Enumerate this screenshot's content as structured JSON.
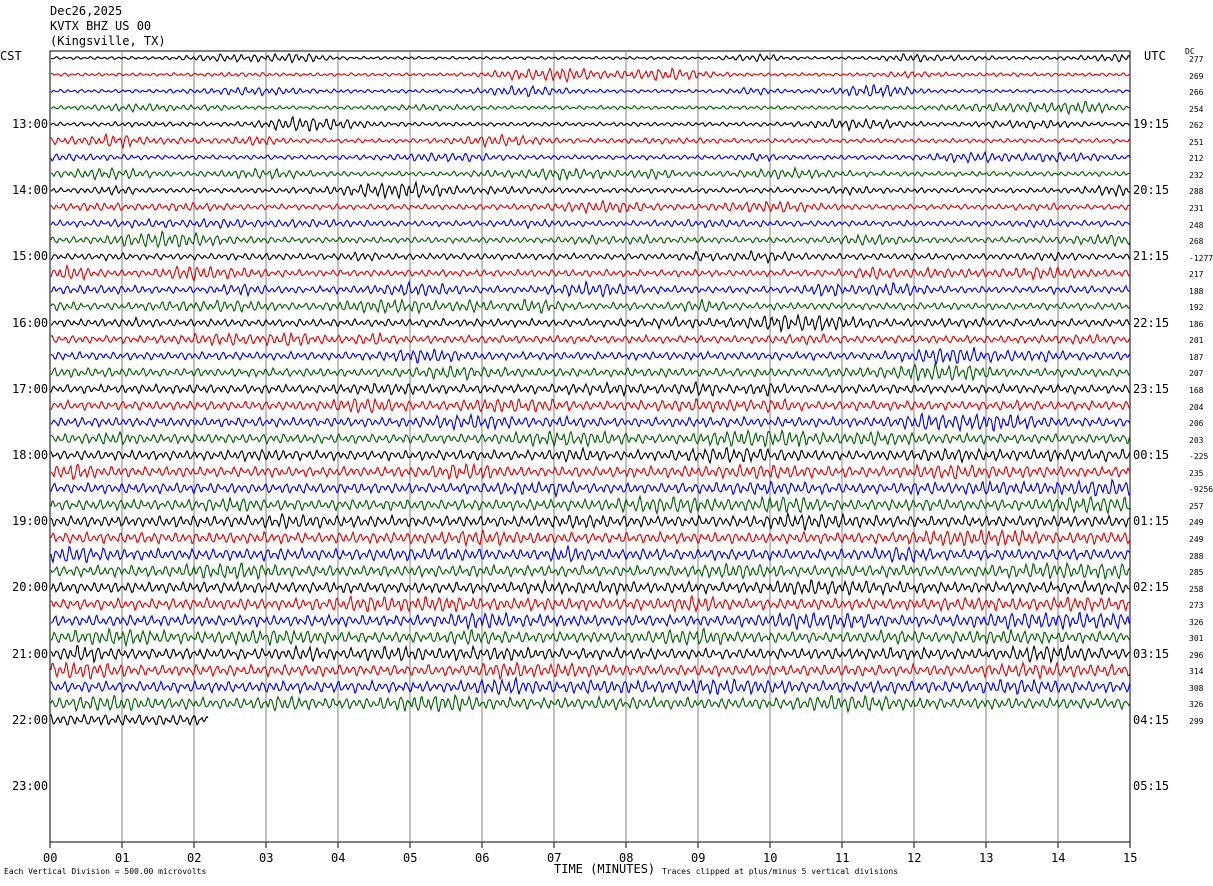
{
  "header": {
    "date": "Dec26,2025",
    "station": "KVTX BHZ US 00",
    "location": "(Kingsville, TX)"
  },
  "left_axis_title": "CST",
  "right_axis_title": "UTC",
  "dc_title": "DC",
  "footer": {
    "scale_note": "Each Vertical Division =  500.00 microvolts",
    "x_title": "TIME (MINUTES)",
    "clip_note": "Traces clipped at plus/minus 5 vertical divisions"
  },
  "colors": {
    "trace_cycle": [
      "#000000",
      "#e00000",
      "#0000e0",
      "#006000"
    ],
    "grid": "#808080",
    "frame": "#000000"
  },
  "chart_data": {
    "type": "line",
    "x_unit": "minutes",
    "xlim": [
      0,
      15
    ],
    "x_ticks": [
      "00",
      "01",
      "02",
      "03",
      "04",
      "05",
      "06",
      "07",
      "08",
      "09",
      "10",
      "11",
      "12",
      "13",
      "14",
      "15"
    ],
    "hour_labels_cst": [
      "13:00",
      "14:00",
      "15:00",
      "16:00",
      "17:00",
      "18:00",
      "19:00",
      "20:00",
      "21:00",
      "22:00",
      "23:00"
    ],
    "hour_labels_utc": [
      "19:15",
      "20:15",
      "21:15",
      "22:15",
      "23:15",
      "00:15",
      "01:15",
      "02:15",
      "03:15",
      "04:15",
      "05:15"
    ],
    "traces_per_hour": 4,
    "trace_count": 41,
    "last_trace_minutes": 2.2,
    "dc_offsets": [
      "277",
      "269",
      "266",
      "254",
      "262",
      "251",
      "212",
      "232",
      "288",
      "231",
      "248",
      "268",
      "-1277",
      "217",
      "188",
      "192",
      "186",
      "201",
      "187",
      "207",
      "168",
      "204",
      "206",
      "203",
      "-225",
      "235",
      "-9256",
      "257",
      "249",
      "249",
      "288",
      "285",
      "258",
      "273",
      "326",
      "301",
      "296",
      "314",
      "308",
      "326",
      "299"
    ]
  }
}
